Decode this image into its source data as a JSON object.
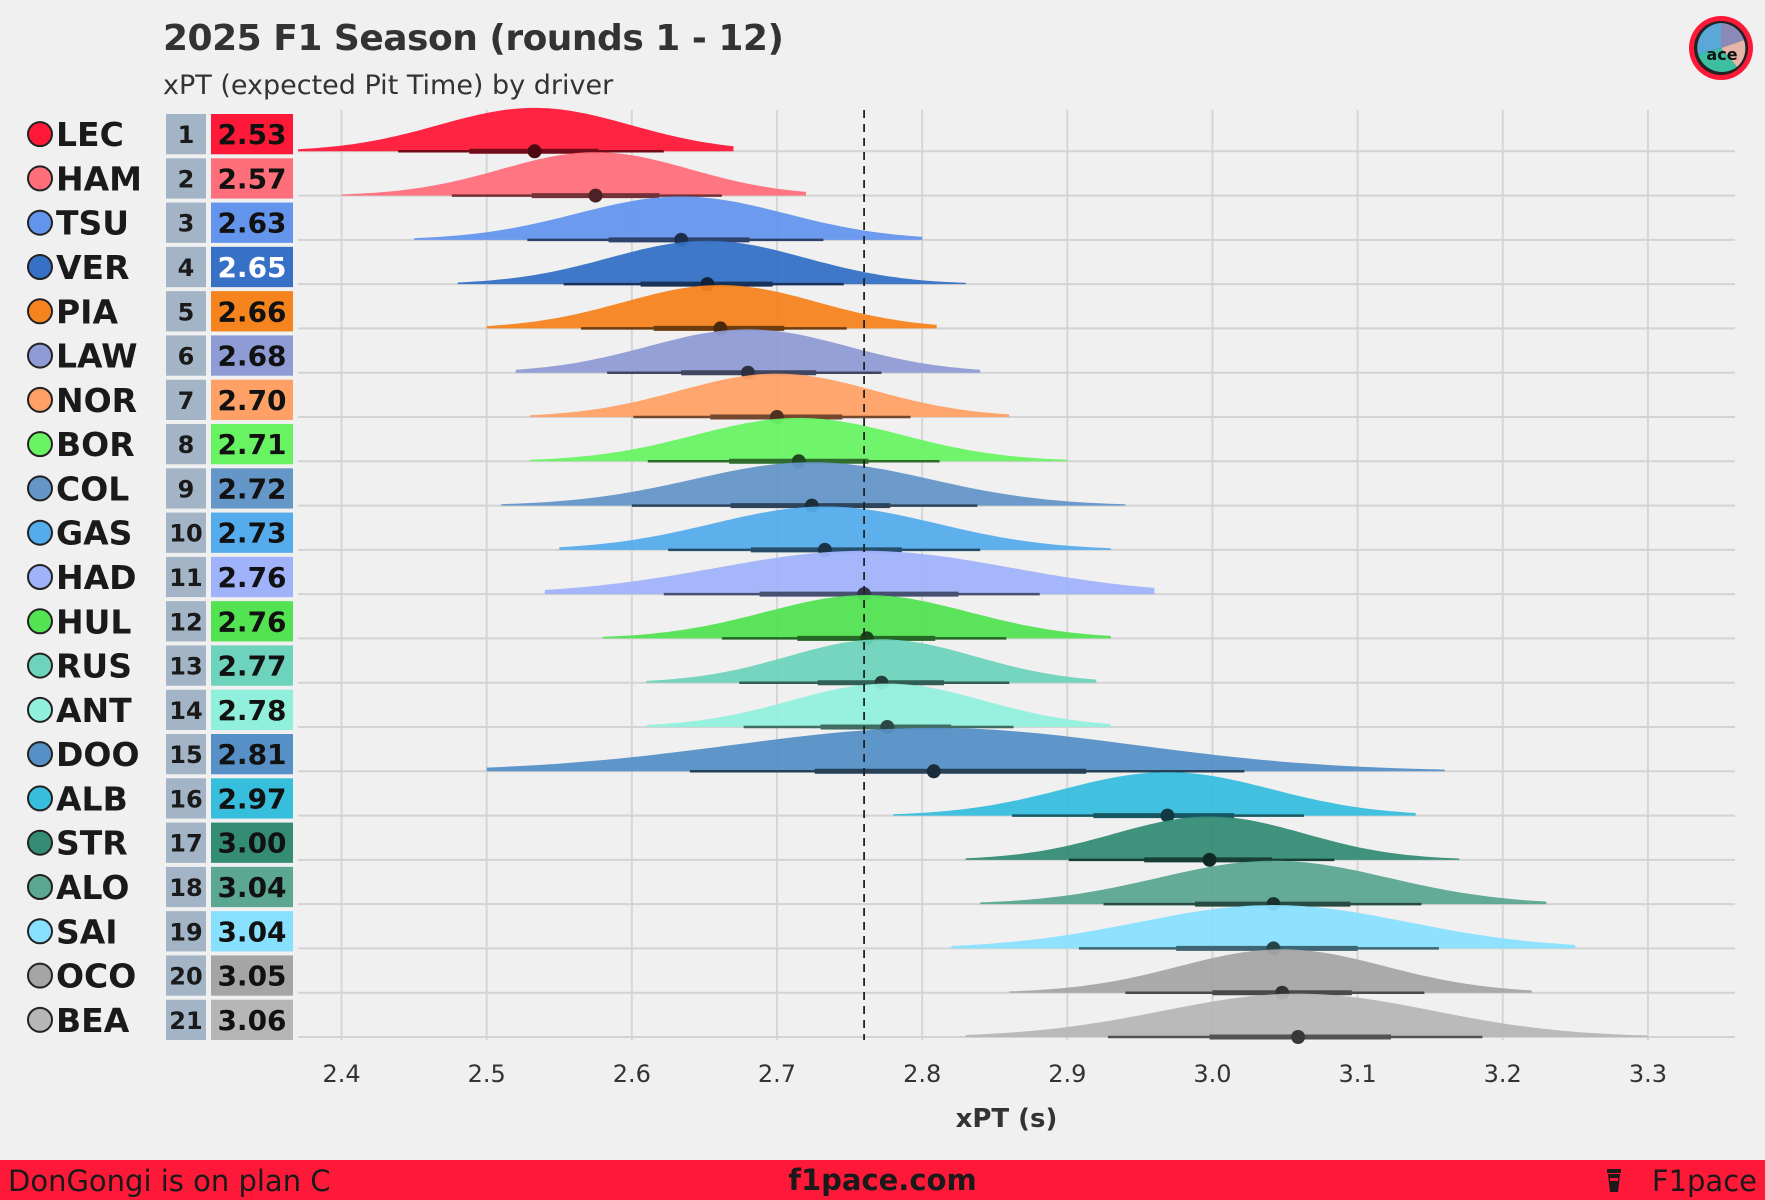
{
  "title": "2025 F1 Season (rounds 1 - 12)",
  "subtitle": "xPT (expected Pit Time) by driver",
  "logo_text": "ace",
  "footer": {
    "left": "DonGongi is on plan C",
    "center": "f1pace.com",
    "right": "F1pace",
    "background": "#ff1938"
  },
  "chart_data": {
    "type": "ridgeline",
    "xlabel": "xPT (s)",
    "xlim": [
      2.37,
      3.36
    ],
    "xticks": [
      "2.4",
      "2.5",
      "2.6",
      "2.7",
      "2.8",
      "2.9",
      "3.0",
      "3.1",
      "3.2",
      "3.3"
    ],
    "reference_line": 2.76,
    "grid": true,
    "drivers": [
      {
        "code": "LEC",
        "rank": "1",
        "label": "2.53",
        "median": 2.533,
        "iqr": [
          2.488,
          2.577
        ],
        "ci": [
          2.439,
          2.622
        ],
        "range": [
          2.37,
          2.67
        ],
        "color": "#ff1938",
        "team_icon": "ferrari-icon"
      },
      {
        "code": "HAM",
        "rank": "2",
        "label": "2.57",
        "median": 2.575,
        "iqr": [
          2.531,
          2.619
        ],
        "ci": [
          2.476,
          2.662
        ],
        "range": [
          2.4,
          2.72
        ],
        "color": "#ff6f7b",
        "team_icon": "ferrari-icon"
      },
      {
        "code": "TSU",
        "rank": "3",
        "label": "2.63",
        "median": 2.634,
        "iqr": [
          2.584,
          2.681
        ],
        "ci": [
          2.528,
          2.732
        ],
        "range": [
          2.45,
          2.8
        ],
        "color": "#6495ed",
        "team_icon": "redbull-icon"
      },
      {
        "code": "VER",
        "rank": "4",
        "label": "2.65",
        "median": 2.652,
        "iqr": [
          2.606,
          2.697
        ],
        "ci": [
          2.553,
          2.746
        ],
        "range": [
          2.48,
          2.83
        ],
        "color": "#3671c6",
        "team_icon": "redbull-icon"
      },
      {
        "code": "PIA",
        "rank": "5",
        "label": "2.66",
        "median": 2.661,
        "iqr": [
          2.615,
          2.705
        ],
        "ci": [
          2.565,
          2.748
        ],
        "range": [
          2.5,
          2.81
        ],
        "color": "#f5841f",
        "team_icon": "mclaren-icon"
      },
      {
        "code": "LAW",
        "rank": "6",
        "label": "2.68",
        "median": 2.68,
        "iqr": [
          2.634,
          2.727
        ],
        "ci": [
          2.583,
          2.772
        ],
        "range": [
          2.52,
          2.84
        ],
        "color": "#8f9bd4",
        "team_icon": "racingbulls-icon"
      },
      {
        "code": "NOR",
        "rank": "7",
        "label": "2.70",
        "median": 2.7,
        "iqr": [
          2.654,
          2.745
        ],
        "ci": [
          2.601,
          2.792
        ],
        "range": [
          2.53,
          2.86
        ],
        "color": "#ffa066",
        "team_icon": "mclaren-icon"
      },
      {
        "code": "BOR",
        "rank": "8",
        "label": "2.71",
        "median": 2.715,
        "iqr": [
          2.667,
          2.763
        ],
        "ci": [
          2.611,
          2.812
        ],
        "range": [
          2.53,
          2.9
        ],
        "color": "#68f363",
        "team_icon": "sauber-icon"
      },
      {
        "code": "COL",
        "rank": "9",
        "label": "2.72",
        "median": 2.724,
        "iqr": [
          2.668,
          2.778
        ],
        "ci": [
          2.6,
          2.838
        ],
        "range": [
          2.51,
          2.94
        ],
        "color": "#6496c8",
        "team_icon": "alpine-icon"
      },
      {
        "code": "GAS",
        "rank": "10",
        "label": "2.73",
        "median": 2.733,
        "iqr": [
          2.682,
          2.786
        ],
        "ci": [
          2.625,
          2.84
        ],
        "range": [
          2.55,
          2.93
        ],
        "color": "#55acec",
        "team_icon": "alpine-icon"
      },
      {
        "code": "HAD",
        "rank": "11",
        "label": "2.76",
        "median": 2.76,
        "iqr": [
          2.688,
          2.825
        ],
        "ci": [
          2.622,
          2.881
        ],
        "range": [
          2.54,
          2.96
        ],
        "color": "#a0b2fa",
        "team_icon": "racingbulls-icon"
      },
      {
        "code": "HUL",
        "rank": "12",
        "label": "2.76",
        "median": 2.762,
        "iqr": [
          2.714,
          2.809
        ],
        "ci": [
          2.662,
          2.858
        ],
        "range": [
          2.58,
          2.93
        ],
        "color": "#52e252",
        "team_icon": "sauber-icon"
      },
      {
        "code": "RUS",
        "rank": "13",
        "label": "2.77",
        "median": 2.772,
        "iqr": [
          2.728,
          2.815
        ],
        "ci": [
          2.674,
          2.86
        ],
        "range": [
          2.61,
          2.92
        ],
        "color": "#6ed3bc",
        "team_icon": "mercedes-icon"
      },
      {
        "code": "ANT",
        "rank": "14",
        "label": "2.78",
        "median": 2.776,
        "iqr": [
          2.73,
          2.82
        ],
        "ci": [
          2.677,
          2.863
        ],
        "range": [
          2.61,
          2.93
        ],
        "color": "#91f0dc",
        "team_icon": "mercedes-icon"
      },
      {
        "code": "DOO",
        "rank": "15",
        "label": "2.81",
        "median": 2.808,
        "iqr": [
          2.726,
          2.913
        ],
        "ci": [
          2.64,
          3.022
        ],
        "range": [
          2.5,
          3.16
        ],
        "color": "#5690c6",
        "team_icon": "alpine-icon"
      },
      {
        "code": "ALB",
        "rank": "16",
        "label": "2.97",
        "median": 2.969,
        "iqr": [
          2.918,
          3.015
        ],
        "ci": [
          2.862,
          3.063
        ],
        "range": [
          2.78,
          3.14
        ],
        "color": "#37bedd",
        "team_icon": "williams-icon"
      },
      {
        "code": "STR",
        "rank": "17",
        "label": "3.00",
        "median": 2.998,
        "iqr": [
          2.953,
          3.041
        ],
        "ci": [
          2.901,
          3.084
        ],
        "range": [
          2.83,
          3.17
        ],
        "color": "#358c75",
        "team_icon": "astonmartin-icon"
      },
      {
        "code": "ALO",
        "rank": "18",
        "label": "3.04",
        "median": 3.042,
        "iqr": [
          2.988,
          3.095
        ],
        "ci": [
          2.925,
          3.144
        ],
        "range": [
          2.84,
          3.23
        ],
        "color": "#5ba791",
        "team_icon": "astonmartin-icon"
      },
      {
        "code": "SAI",
        "rank": "19",
        "label": "3.04",
        "median": 3.042,
        "iqr": [
          2.975,
          3.1
        ],
        "ci": [
          2.908,
          3.156
        ],
        "range": [
          2.82,
          3.25
        ],
        "color": "#88e0ff",
        "team_icon": "williams-icon"
      },
      {
        "code": "OCO",
        "rank": "20",
        "label": "3.05",
        "median": 3.048,
        "iqr": [
          3.0,
          3.096
        ],
        "ci": [
          2.94,
          3.146
        ],
        "range": [
          2.86,
          3.22
        ],
        "color": "#a5a5a5",
        "team_icon": "haas-icon"
      },
      {
        "code": "BEA",
        "rank": "21",
        "label": "3.06",
        "median": 3.059,
        "iqr": [
          2.998,
          3.123
        ],
        "ci": [
          2.928,
          3.186
        ],
        "range": [
          2.83,
          3.3
        ],
        "color": "#b6b6b6",
        "team_icon": "haas-icon"
      }
    ]
  }
}
